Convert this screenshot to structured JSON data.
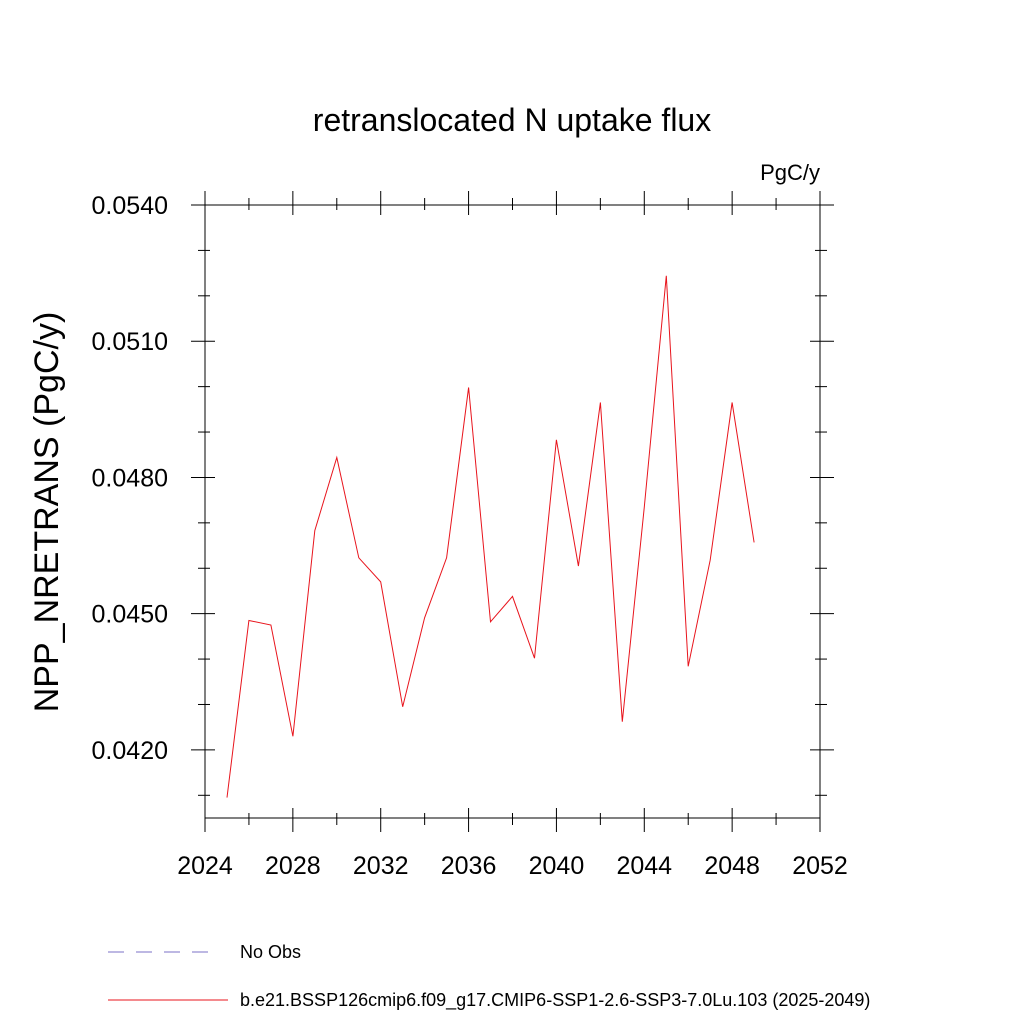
{
  "chart_data": {
    "type": "line",
    "title": "retranslocated N uptake flux",
    "units": "PgC/y",
    "ylabel": "NPP_NRETRANS  (PgC/y)",
    "xlabel": "",
    "xlim": [
      2024,
      2052
    ],
    "ylim": [
      0.0405,
      0.054
    ],
    "xticks": [
      2024,
      2028,
      2032,
      2036,
      2040,
      2044,
      2048,
      2052
    ],
    "xtick_labels": [
      "2024",
      "2028",
      "2032",
      "2036",
      "2040",
      "2044",
      "2048",
      "2052"
    ],
    "yticks": [
      0.042,
      0.045,
      0.048,
      0.051,
      0.054
    ],
    "ytick_labels": [
      "0.0420",
      "0.0450",
      "0.0480",
      "0.0510",
      "0.0540"
    ],
    "grid": false,
    "series": [
      {
        "name": "b.e21.BSSP126cmip6.f09_g17.CMIP6-SSP1-2.6-SSP3-7.0Lu.103 (2025-2049)",
        "color": "#e8141c",
        "x": [
          2025,
          2026,
          2027,
          2028,
          2029,
          2030,
          2031,
          2032,
          2033,
          2034,
          2035,
          2036,
          2037,
          2038,
          2039,
          2040,
          2041,
          2042,
          2043,
          2044,
          2045,
          2046,
          2047,
          2048,
          2049
        ],
        "y": [
          0.04095,
          0.04485,
          0.04475,
          0.0423,
          0.04683,
          0.04844,
          0.04623,
          0.0457,
          0.04295,
          0.04491,
          0.04623,
          0.04998,
          0.04482,
          0.04538,
          0.04402,
          0.04883,
          0.04605,
          0.04965,
          0.04262,
          0.04735,
          0.05244,
          0.04384,
          0.04618,
          0.04965,
          0.04657
        ]
      }
    ],
    "legend": {
      "placement": "bottom",
      "entries": [
        {
          "label": "No Obs",
          "style": "dashed",
          "color": "#7b72c7"
        },
        {
          "label": "b.e21.BSSP126cmip6.f09_g17.CMIP6-SSP1-2.6-SSP3-7.0Lu.103 (2025-2049)",
          "style": "solid",
          "color": "#e8141c"
        }
      ]
    }
  }
}
